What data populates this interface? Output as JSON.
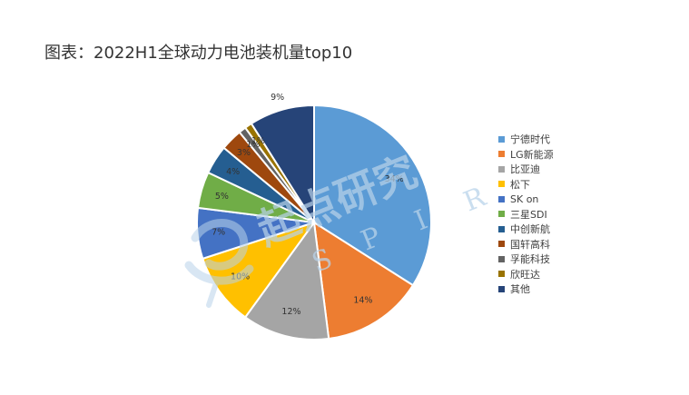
{
  "title": "图表：2022H1全球动力电池装机量top10",
  "watermark": {
    "chinese_text": "起点研究",
    "latin_letters": [
      "S",
      "P",
      "I",
      "R"
    ],
    "color": "#b9d3ea"
  },
  "chart_data": {
    "type": "pie",
    "title": "图表：2022H1全球动力电池装机量top10",
    "unit": "%",
    "legend_position": "right",
    "slices": [
      {
        "label": "宁德时代",
        "value": 34,
        "display": "34%",
        "color": "#5b9bd5"
      },
      {
        "label": "LG新能源",
        "value": 14,
        "display": "14%",
        "color": "#ed7d31"
      },
      {
        "label": "比亚迪",
        "value": 12,
        "display": "12%",
        "color": "#a5a5a5"
      },
      {
        "label": "松下",
        "value": 10,
        "display": "10%",
        "color": "#ffc000"
      },
      {
        "label": "SK on",
        "value": 7,
        "display": "7%",
        "color": "#4472c4"
      },
      {
        "label": "三星SDI",
        "value": 5,
        "display": "5%",
        "color": "#70ad47"
      },
      {
        "label": "中创新航",
        "value": 4,
        "display": "4%",
        "color": "#255e91"
      },
      {
        "label": "国轩高科",
        "value": 3,
        "display": "3%",
        "color": "#9e480e"
      },
      {
        "label": "孚能科技",
        "value": 1,
        "display": "1%",
        "color": "#636363"
      },
      {
        "label": "欣旺达",
        "value": 1,
        "display": "1%",
        "color": "#997300"
      },
      {
        "label": "其他",
        "value": 9,
        "display": "9%",
        "color": "#264478"
      }
    ]
  }
}
